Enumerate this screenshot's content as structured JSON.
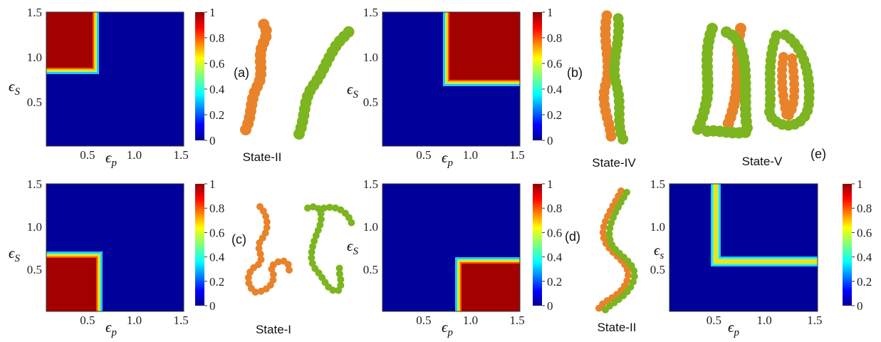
{
  "panels": [
    {
      "label": "(a)",
      "x_label": {
        "symbol": "ϵ",
        "sub": "p"
      },
      "y_label": {
        "symbol": "ϵ",
        "sub": "S"
      },
      "xticks": [
        "0.5",
        "1.0",
        "1.5"
      ],
      "yticks": [
        "1.5",
        "1.0",
        "0.5"
      ],
      "colorbar_ticks": [
        "1",
        "0.8",
        "0.6",
        "0.4",
        "0.2",
        "0"
      ]
    },
    {
      "label": "(b)",
      "x_label": {
        "symbol": "ϵ",
        "sub": "p"
      },
      "y_label": {
        "symbol": "ϵ",
        "sub": "S"
      },
      "xticks": [
        "0.5",
        "1.0",
        "1.5"
      ],
      "yticks": [
        "1.5",
        "1.0",
        "0.5"
      ],
      "colorbar_ticks": [
        "1",
        "0.8",
        "0.6",
        "0.4",
        "0.2",
        "0"
      ]
    },
    {
      "label": "(c)",
      "x_label": {
        "symbol": "ϵ",
        "sub": "p"
      },
      "y_label": {
        "symbol": "ϵ",
        "sub": "S"
      },
      "xticks": [
        "0.5",
        "1.0",
        "1.5"
      ],
      "yticks": [
        "1.5",
        "1.0",
        "0.5"
      ],
      "colorbar_ticks": [
        "1",
        "0.8",
        "0.6",
        "0.4",
        "0.2",
        "0"
      ]
    },
    {
      "label": "(d)",
      "x_label": {
        "symbol": "ϵ",
        "sub": "p"
      },
      "y_label": {
        "symbol": "ϵ",
        "sub": "S"
      },
      "xticks": [
        "0.5",
        "1.0",
        "1.5"
      ],
      "yticks": [
        "1.5",
        "1.0",
        "0.5"
      ],
      "colorbar_ticks": [
        "1",
        "0.8",
        "0.6",
        "0.4",
        "0.2",
        "0"
      ]
    },
    {
      "label": "(e)",
      "x_label": {
        "symbol": "ϵ",
        "sub": "p"
      },
      "y_label": {
        "symbol": "ϵ",
        "sub": "s"
      },
      "xticks": [
        "0.5",
        "1.0",
        "1.5"
      ],
      "yticks": [
        "1.5",
        "1.0",
        "0.5"
      ],
      "colorbar_ticks": [
        "1",
        "0.8",
        "0.6",
        "0.4",
        "0.2",
        "0"
      ]
    }
  ],
  "states": [
    "State-II",
    "State-IV",
    "State-V",
    "State-I",
    "State-II"
  ]
}
